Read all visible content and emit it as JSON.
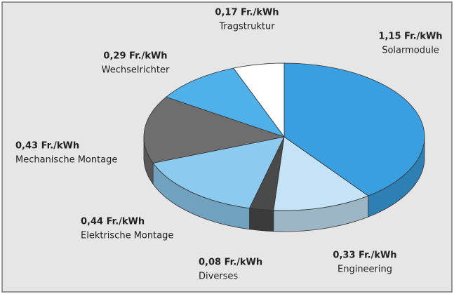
{
  "chart_data": {
    "type": "pie",
    "categories": [
      "Solarmodule",
      "Engineering",
      "Diverses",
      "Elektrische Montage",
      "Mechanische Montage",
      "Wechselrichter",
      "Tragstruktur"
    ],
    "values": [
      1.15,
      0.33,
      0.08,
      0.44,
      0.43,
      0.29,
      0.17
    ],
    "value_labels": [
      "1,15 Fr./kWh",
      "0,33 Fr./kWh",
      "0,08 Fr./kWh",
      "0,44 Fr./kWh",
      "0,43 Fr./kWh",
      "0,29 Fr./kWh",
      "0,17 Fr./kWh"
    ],
    "colors": [
      "#3a9fe0",
      "#c4e3f7",
      "#4a4a4a",
      "#8ccaf0",
      "#6e6e6e",
      "#4fb0ea",
      "#ffffff"
    ]
  }
}
